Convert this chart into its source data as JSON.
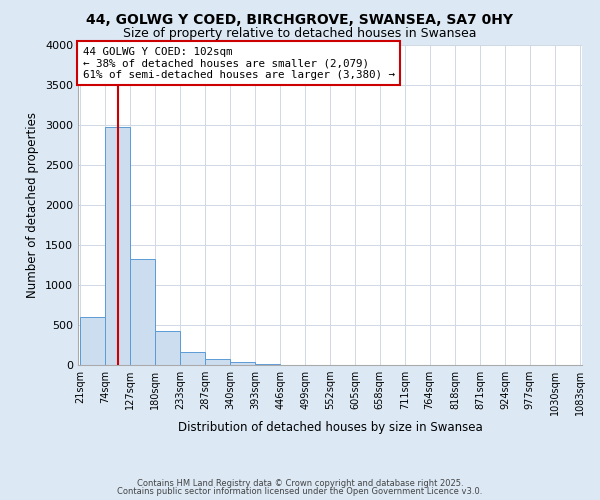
{
  "title1": "44, GOLWG Y COED, BIRCHGROVE, SWANSEA, SA7 0HY",
  "title2": "Size of property relative to detached houses in Swansea",
  "xlabel": "Distribution of detached houses by size in Swansea",
  "ylabel": "Number of detached properties",
  "footer1": "Contains HM Land Registry data © Crown copyright and database right 2025.",
  "footer2": "Contains public sector information licensed under the Open Government Licence v3.0.",
  "annotation_line1": "44 GOLWG Y COED: 102sqm",
  "annotation_line2": "← 38% of detached houses are smaller (2,079)",
  "annotation_line3": "61% of semi-detached houses are larger (3,380) →",
  "property_sqm": 102,
  "bar_edges": [
    21,
    74,
    127,
    180,
    233,
    287,
    340,
    393,
    446,
    499,
    552,
    605,
    658,
    711,
    764,
    818,
    871,
    924,
    977,
    1030,
    1083
  ],
  "bar_heights": [
    600,
    2970,
    1330,
    420,
    165,
    80,
    40,
    10,
    0,
    0,
    0,
    0,
    0,
    0,
    0,
    0,
    0,
    0,
    0,
    0
  ],
  "bar_color": "#ccddf0",
  "bar_edge_color": "#5b9bd5",
  "red_line_color": "#cc0000",
  "annotation_box_edge": "#cc0000",
  "annotation_box_face": "#ffffff",
  "grid_color": "#d0d8e4",
  "plot_bg_color": "#ffffff",
  "fig_bg_color": "#dce9f5",
  "ylim": [
    0,
    4000
  ],
  "yticks": [
    0,
    500,
    1000,
    1500,
    2000,
    2500,
    3000,
    3500,
    4000
  ]
}
